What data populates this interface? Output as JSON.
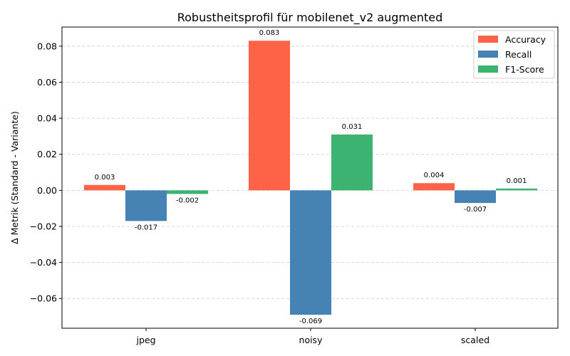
{
  "chart_data": {
    "type": "bar",
    "title": "Robustheitsprofil für mobilenet_v2 augmented",
    "xlabel": "",
    "ylabel": "Δ Metrik (Standard - Variante)",
    "categories": [
      "jpeg",
      "noisy",
      "scaled"
    ],
    "series": [
      {
        "name": "Accuracy",
        "color": "#ff6347",
        "values": [
          0.003,
          0.083,
          0.004
        ],
        "labels": [
          "0.003",
          "0.083",
          "0.004"
        ]
      },
      {
        "name": "Recall",
        "color": "#4682b4",
        "values": [
          -0.017,
          -0.069,
          -0.007
        ],
        "labels": [
          "-0.017",
          "-0.069",
          "-0.007"
        ]
      },
      {
        "name": "F1-Score",
        "color": "#3cb371",
        "values": [
          -0.002,
          0.031,
          0.001
        ],
        "labels": [
          "-0.002",
          "0.031",
          "0.001"
        ]
      }
    ],
    "ylim": [
      -0.0765,
      0.0906
    ],
    "yticks": [
      -0.06,
      -0.04,
      -0.02,
      0.0,
      0.02,
      0.04,
      0.06,
      0.08
    ],
    "ytick_labels": [
      "−0.06",
      "−0.04",
      "−0.02",
      "0.00",
      "0.02",
      "0.04",
      "0.06",
      "0.08"
    ],
    "grid": "y-dashed",
    "legend_position": "top-right"
  }
}
